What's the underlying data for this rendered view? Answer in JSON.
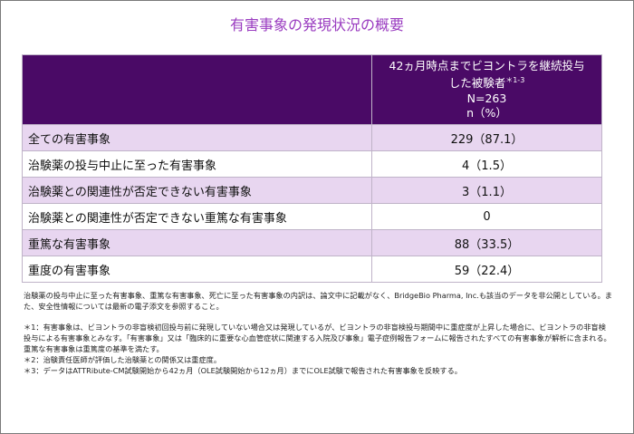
{
  "title": "有害事象の発現状況の概要",
  "table": {
    "header": {
      "line1": "42ヵ月時点までビヨントラを継続投与",
      "line2": "した被験者",
      "sup": "＊1-3",
      "line3": "N=263",
      "line4": "n（%）"
    },
    "rows": [
      {
        "label": "全ての有害事象",
        "value": "229（87.1）"
      },
      {
        "label": "治験薬の投与中止に至った有害事象",
        "value": "4（1.5）"
      },
      {
        "label": "治験薬との関連性が否定できない有害事象",
        "value": "3（1.1）"
      },
      {
        "label": "治験薬との関連性が否定できない重篤な有害事象",
        "value": "0"
      },
      {
        "label": "重篤な有害事象",
        "value": "88（33.5）"
      },
      {
        "label": "重度の有害事象",
        "value": "59（22.4）"
      }
    ]
  },
  "notes": {
    "intro": "治験薬の投与中止に至った有害事象、重篤な有害事象、死亡に至った有害事象の内訳は、論文中に記載がなく、BridgeBio Pharma, Inc.も該当のデータを非公開としている。また、安全性情報については最新の電子添文を参照すること。",
    "n1": "＊1：有害事象は、ビヨントラの非盲検初回投与前に発現していない場合又は発現しているが、ビヨントラの非盲検投与期間中に重症度が上昇した場合に、ビヨントラの非盲検投与による有害事象とみなす。「有害事象」又は「臨床的に重要な心血管症状に関連する入院及び事象」電子症例報告フォームに報告されたすべての有害事象が解析に含まれる。重篤な有害事象は重篤度の基準を満たす。",
    "n2": "＊2：治験責任医師が評価した治験薬との関係又は重症度。",
    "n3": "＊3：データはATTRibute-CM試験開始から42ヵ月（OLE試験開始から12ヵ月）までにOLE試験で報告された有害事象を反映する。"
  }
}
